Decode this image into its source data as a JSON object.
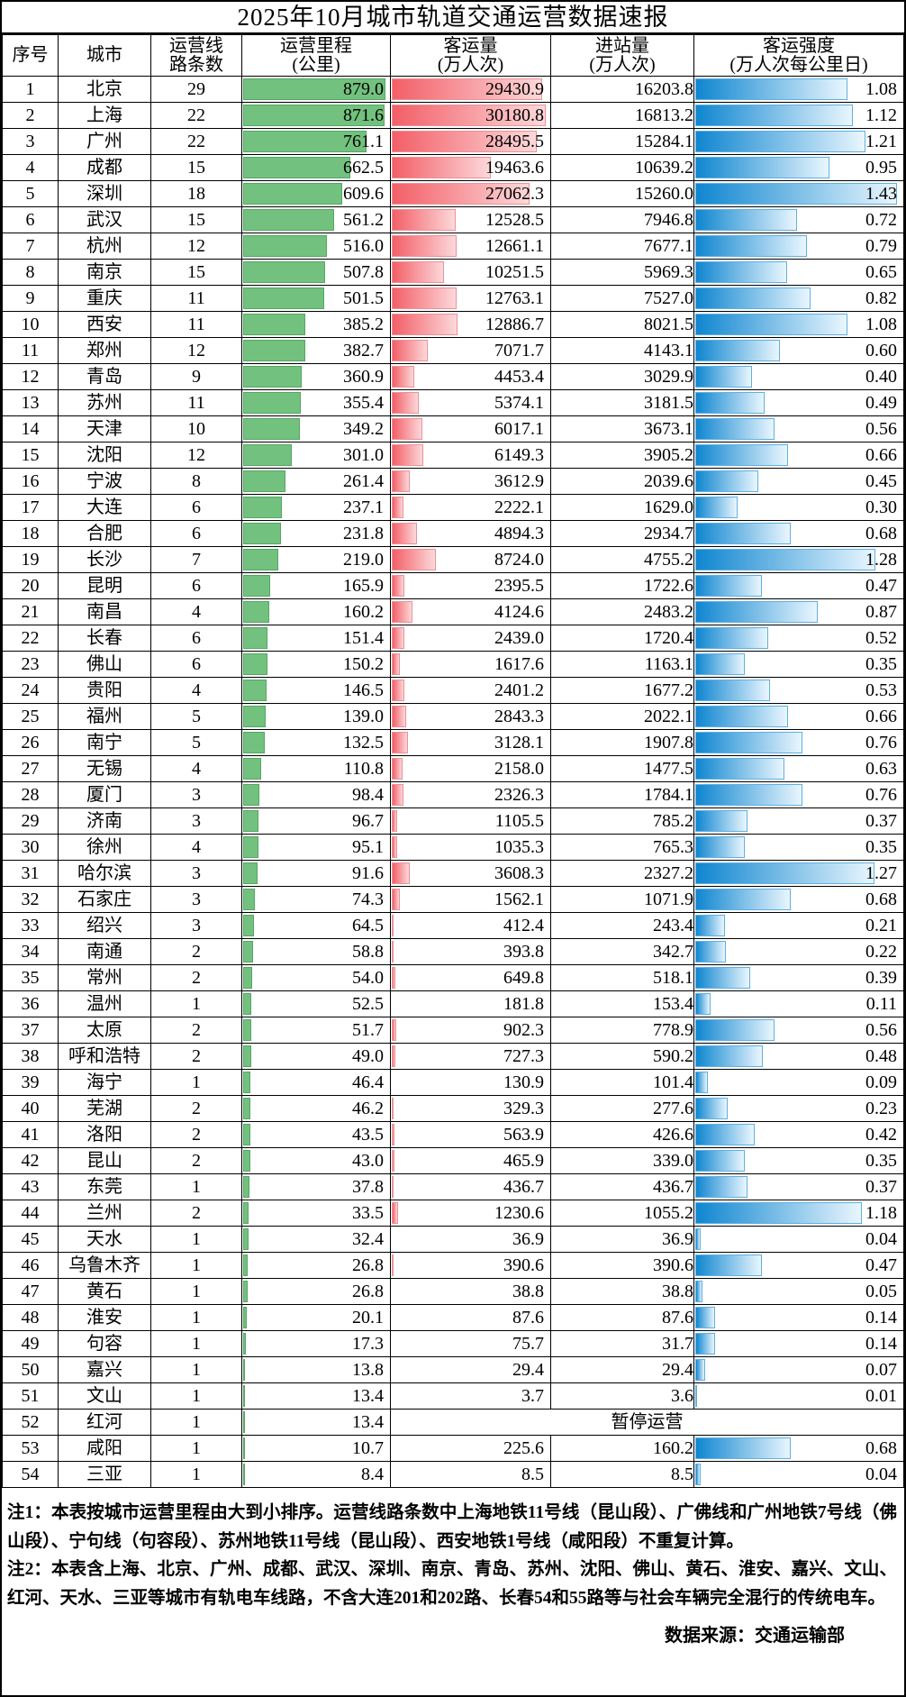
{
  "title": "2025年10月城市轨道交通运营数据速报",
  "suspended_label": "暂停运营",
  "notes": {
    "note1": "注1：本表按城市运营里程由大到小排序。运营线路条数中上海地铁11号线（昆山段）、广佛线和广州地铁7号线（佛山段）、宁句线（句容段）、苏州地铁11号线（昆山段）、西安地铁1号线（咸阳段）不重复计算。",
    "note2": "注2：本表含上海、北京、广州、成都、武汉、深圳、南京、青岛、苏州、沈阳、佛山、黄石、淮安、嘉兴、文山、红河、天水、三亚等城市有轨电车线路，不含大连201和202路、长春54和55路等与社会车辆完全混行的传统电车。",
    "source": "数据来源：交通运输部"
  },
  "chart_data": {
    "type": "table",
    "title": "2025年10月城市轨道交通运营数据速报",
    "columns": [
      [
        "序号"
      ],
      [
        "城市"
      ],
      [
        "运营线",
        "路条数"
      ],
      [
        "运营里程",
        "(公里)"
      ],
      [
        "客运量",
        "(万人次)"
      ],
      [
        "进站量",
        "(万人次)"
      ],
      [
        "客运强度",
        "(万人次每公里日)"
      ]
    ],
    "bar_colors": {
      "mileage": "#73c17e",
      "volume": "#f35f67",
      "intensity": "#0f86d0"
    },
    "bar_max": {
      "mileage": 879.0,
      "volume": 30180.8,
      "intensity": 1.43
    },
    "rows": [
      [
        "1",
        "北京",
        "29",
        "879.0",
        "29430.9",
        "16203.8",
        "1.08"
      ],
      [
        "2",
        "上海",
        "22",
        "871.6",
        "30180.8",
        "16813.2",
        "1.12"
      ],
      [
        "3",
        "广州",
        "22",
        "761.1",
        "28495.5",
        "15284.1",
        "1.21"
      ],
      [
        "4",
        "成都",
        "15",
        "662.5",
        "19463.6",
        "10639.2",
        "0.95"
      ],
      [
        "5",
        "深圳",
        "18",
        "609.6",
        "27062.3",
        "15260.0",
        "1.43"
      ],
      [
        "6",
        "武汉",
        "15",
        "561.2",
        "12528.5",
        "7946.8",
        "0.72"
      ],
      [
        "7",
        "杭州",
        "12",
        "516.0",
        "12661.1",
        "7677.1",
        "0.79"
      ],
      [
        "8",
        "南京",
        "15",
        "507.8",
        "10251.5",
        "5969.3",
        "0.65"
      ],
      [
        "9",
        "重庆",
        "11",
        "501.5",
        "12763.1",
        "7527.0",
        "0.82"
      ],
      [
        "10",
        "西安",
        "11",
        "385.2",
        "12886.7",
        "8021.5",
        "1.08"
      ],
      [
        "11",
        "郑州",
        "12",
        "382.7",
        "7071.7",
        "4143.1",
        "0.60"
      ],
      [
        "12",
        "青岛",
        "9",
        "360.9",
        "4453.4",
        "3029.9",
        "0.40"
      ],
      [
        "13",
        "苏州",
        "11",
        "355.4",
        "5374.1",
        "3181.5",
        "0.49"
      ],
      [
        "14",
        "天津",
        "10",
        "349.2",
        "6017.1",
        "3673.1",
        "0.56"
      ],
      [
        "15",
        "沈阳",
        "12",
        "301.0",
        "6149.3",
        "3905.2",
        "0.66"
      ],
      [
        "16",
        "宁波",
        "8",
        "261.4",
        "3612.9",
        "2039.6",
        "0.45"
      ],
      [
        "17",
        "大连",
        "6",
        "237.1",
        "2222.1",
        "1629.0",
        "0.30"
      ],
      [
        "18",
        "合肥",
        "6",
        "231.8",
        "4894.3",
        "2934.7",
        "0.68"
      ],
      [
        "19",
        "长沙",
        "7",
        "219.0",
        "8724.0",
        "4755.2",
        "1.28"
      ],
      [
        "20",
        "昆明",
        "6",
        "165.9",
        "2395.5",
        "1722.6",
        "0.47"
      ],
      [
        "21",
        "南昌",
        "4",
        "160.2",
        "4124.6",
        "2483.2",
        "0.87"
      ],
      [
        "22",
        "长春",
        "6",
        "151.4",
        "2439.0",
        "1720.4",
        "0.52"
      ],
      [
        "23",
        "佛山",
        "6",
        "150.2",
        "1617.6",
        "1163.1",
        "0.35"
      ],
      [
        "24",
        "贵阳",
        "4",
        "146.5",
        "2401.2",
        "1677.2",
        "0.53"
      ],
      [
        "25",
        "福州",
        "5",
        "139.0",
        "2843.3",
        "2022.1",
        "0.66"
      ],
      [
        "26",
        "南宁",
        "5",
        "132.5",
        "3128.1",
        "1907.8",
        "0.76"
      ],
      [
        "27",
        "无锡",
        "4",
        "110.8",
        "2158.0",
        "1477.5",
        "0.63"
      ],
      [
        "28",
        "厦门",
        "3",
        "98.4",
        "2326.3",
        "1784.1",
        "0.76"
      ],
      [
        "29",
        "济南",
        "3",
        "96.7",
        "1105.5",
        "785.2",
        "0.37"
      ],
      [
        "30",
        "徐州",
        "4",
        "95.1",
        "1035.3",
        "765.3",
        "0.35"
      ],
      [
        "31",
        "哈尔滨",
        "3",
        "91.6",
        "3608.3",
        "2327.2",
        "1.27"
      ],
      [
        "32",
        "石家庄",
        "3",
        "74.3",
        "1562.1",
        "1071.9",
        "0.68"
      ],
      [
        "33",
        "绍兴",
        "3",
        "64.5",
        "412.4",
        "243.4",
        "0.21"
      ],
      [
        "34",
        "南通",
        "2",
        "58.8",
        "393.8",
        "342.7",
        "0.22"
      ],
      [
        "35",
        "常州",
        "2",
        "54.0",
        "649.8",
        "518.1",
        "0.39"
      ],
      [
        "36",
        "温州",
        "1",
        "52.5",
        "181.8",
        "153.4",
        "0.11"
      ],
      [
        "37",
        "太原",
        "2",
        "51.7",
        "902.3",
        "778.9",
        "0.56"
      ],
      [
        "38",
        "呼和浩特",
        "2",
        "49.0",
        "727.3",
        "590.2",
        "0.48"
      ],
      [
        "39",
        "海宁",
        "1",
        "46.4",
        "130.9",
        "101.4",
        "0.09"
      ],
      [
        "40",
        "芜湖",
        "2",
        "46.2",
        "329.3",
        "277.6",
        "0.23"
      ],
      [
        "41",
        "洛阳",
        "2",
        "43.5",
        "563.9",
        "426.6",
        "0.42"
      ],
      [
        "42",
        "昆山",
        "2",
        "43.0",
        "465.9",
        "339.0",
        "0.35"
      ],
      [
        "43",
        "东莞",
        "1",
        "37.8",
        "436.7",
        "436.7",
        "0.37"
      ],
      [
        "44",
        "兰州",
        "2",
        "33.5",
        "1230.6",
        "1055.2",
        "1.18"
      ],
      [
        "45",
        "天水",
        "1",
        "32.4",
        "36.9",
        "36.9",
        "0.04"
      ],
      [
        "46",
        "乌鲁木齐",
        "1",
        "26.8",
        "390.6",
        "390.6",
        "0.47"
      ],
      [
        "47",
        "黄石",
        "1",
        "26.8",
        "38.8",
        "38.8",
        "0.05"
      ],
      [
        "48",
        "淮安",
        "1",
        "20.1",
        "87.6",
        "87.6",
        "0.14"
      ],
      [
        "49",
        "句容",
        "1",
        "17.3",
        "75.7",
        "31.7",
        "0.14"
      ],
      [
        "50",
        "嘉兴",
        "1",
        "13.8",
        "29.4",
        "29.4",
        "0.07"
      ],
      [
        "51",
        "文山",
        "1",
        "13.4",
        "3.7",
        "3.6",
        "0.01"
      ],
      [
        "52",
        "红河",
        "1",
        "13.4",
        null,
        null,
        null
      ],
      [
        "53",
        "咸阳",
        "1",
        "10.7",
        "225.6",
        "160.2",
        "0.68"
      ],
      [
        "54",
        "三亚",
        "1",
        "8.4",
        "8.5",
        "8.5",
        "0.04"
      ]
    ]
  }
}
